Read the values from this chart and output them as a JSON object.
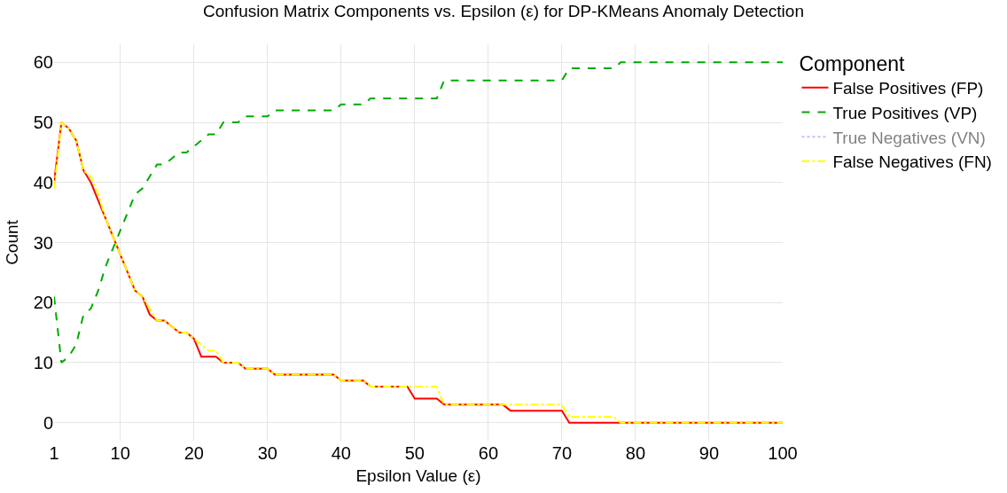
{
  "chart_data": {
    "type": "line",
    "title": "Confusion Matrix Components vs. Epsilon (ε) for DP-KMeans Anomaly Detection",
    "xlabel": "Epsilon Value (ε)",
    "ylabel": "Count",
    "legend_title": "Component",
    "xlim": [
      1,
      100
    ],
    "xticks": [
      1,
      10,
      20,
      30,
      40,
      50,
      60,
      70,
      80,
      90,
      100
    ],
    "ylim": [
      -3,
      63
    ],
    "yticks": [
      0,
      10,
      20,
      30,
      40,
      50,
      60
    ],
    "grid": true,
    "legend": "top right",
    "marker": "none",
    "series": [
      {
        "name": "False Positives (FP)",
        "color": "#ff0000",
        "line_style": "solid",
        "x": [
          1,
          2,
          3,
          4,
          5,
          6,
          7,
          8,
          9,
          10,
          11,
          12,
          13,
          14,
          15,
          16,
          17,
          18,
          19,
          20,
          21,
          23,
          24,
          26,
          27,
          30,
          31,
          39,
          40,
          43,
          44,
          49,
          50,
          53,
          54,
          62,
          63,
          70,
          71,
          100
        ],
        "values": [
          40,
          50,
          49,
          47,
          42,
          40,
          37,
          34,
          31,
          28,
          25,
          22,
          21,
          18,
          17,
          17,
          16,
          15,
          15,
          14,
          11,
          11,
          10,
          10,
          9,
          9,
          8,
          8,
          7,
          7,
          6,
          6,
          4,
          4,
          3,
          3,
          2,
          2,
          0,
          0
        ]
      },
      {
        "name": "True Positives (VP)",
        "color": "#00aa00",
        "line_style": "dashed",
        "x": [
          1,
          2,
          3,
          4,
          5,
          6,
          7,
          8,
          9,
          10,
          11,
          12,
          13,
          14,
          15,
          16,
          17,
          18,
          19,
          20,
          21,
          22,
          23,
          24,
          26,
          27,
          30,
          31,
          39,
          40,
          43,
          44,
          53,
          54,
          70,
          71,
          77,
          78,
          100
        ],
        "values": [
          21,
          10,
          11,
          13,
          18,
          19,
          22,
          26,
          29,
          32,
          35,
          38,
          39,
          41,
          43,
          43,
          44,
          45,
          45,
          46,
          47,
          48,
          48,
          50,
          50,
          51,
          51,
          52,
          52,
          53,
          53,
          54,
          54,
          57,
          57,
          59,
          59,
          60,
          60
        ]
      },
      {
        "name": "True Negatives (VN)",
        "color": "#8080ff",
        "line_style": "dotted"
      },
      {
        "name": "False Negatives (FN)",
        "color": "#ffff00",
        "line_style": "dashdot",
        "x": [
          1,
          2,
          3,
          4,
          5,
          6,
          7,
          8,
          9,
          10,
          11,
          12,
          13,
          14,
          15,
          16,
          17,
          18,
          19,
          20,
          21,
          22,
          23,
          24,
          26,
          27,
          30,
          31,
          39,
          40,
          43,
          44,
          53,
          54,
          70,
          71,
          77,
          78,
          100
        ],
        "values": [
          39,
          50,
          49,
          47,
          42,
          41,
          38,
          34,
          31,
          28,
          25,
          22,
          21,
          19,
          17,
          17,
          16,
          15,
          15,
          14,
          13,
          12,
          12,
          10,
          10,
          9,
          9,
          8,
          8,
          7,
          7,
          6,
          6,
          3,
          3,
          1,
          1,
          0,
          0
        ]
      }
    ]
  }
}
